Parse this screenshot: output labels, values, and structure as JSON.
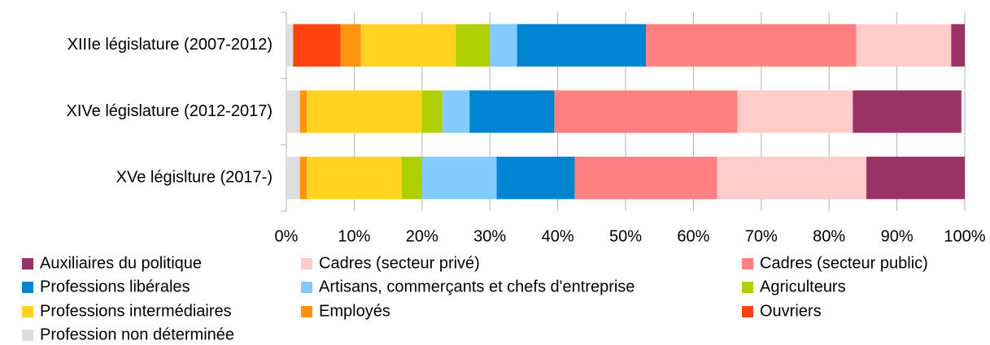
{
  "chart_data": {
    "type": "stacked-bar-horizontal",
    "categories": [
      "XIIIe législature (2007-2012)",
      "XIVe législature (2012-2017)",
      "XVe législture (2017-)"
    ],
    "series": [
      {
        "name": "Auxiliaires du politique",
        "color": "#993366",
        "values": [
          2,
          16,
          14.5
        ]
      },
      {
        "name": "Cadres (secteur privé)",
        "color": "#ffcccc",
        "values": [
          14,
          17,
          22
        ]
      },
      {
        "name": "Cadres (secteur public)",
        "color": "#ff8080",
        "values": [
          31,
          27,
          21
        ]
      },
      {
        "name": "Professions libérales",
        "color": "#0084d1",
        "values": [
          19,
          12.5,
          11.5
        ]
      },
      {
        "name": "Artisans, commerçants et chefs d'entreprise",
        "color": "#83caff",
        "values": [
          4,
          4,
          11
        ]
      },
      {
        "name": "Agriculteurs",
        "color": "#aecf00",
        "values": [
          5,
          3,
          3
        ]
      },
      {
        "name": "Professions intermédiaires",
        "color": "#ffd320",
        "values": [
          14,
          17,
          14
        ]
      },
      {
        "name": "Employés",
        "color": "#ff950e",
        "values": [
          3,
          1,
          1
        ]
      },
      {
        "name": "Ouvriers",
        "color": "#ff420e",
        "values": [
          7,
          0,
          0
        ]
      },
      {
        "name": "Profession non déterminée",
        "color": "#dddddd",
        "values": [
          1,
          2,
          2
        ]
      }
    ],
    "xlim": [
      0,
      100
    ],
    "xticks": [
      {
        "value": 0,
        "label": "0%"
      },
      {
        "value": 10,
        "label": "10%"
      },
      {
        "value": 20,
        "label": "20%"
      },
      {
        "value": 30,
        "label": "30%"
      },
      {
        "value": 40,
        "label": "40%"
      },
      {
        "value": 50,
        "label": "50%"
      },
      {
        "value": 60,
        "label": "60%"
      },
      {
        "value": 70,
        "label": "70%"
      },
      {
        "value": 80,
        "label": "80%"
      },
      {
        "value": 90,
        "label": "90%"
      },
      {
        "value": 100,
        "label": "100%"
      }
    ],
    "grid": true,
    "legend": "bottom"
  }
}
